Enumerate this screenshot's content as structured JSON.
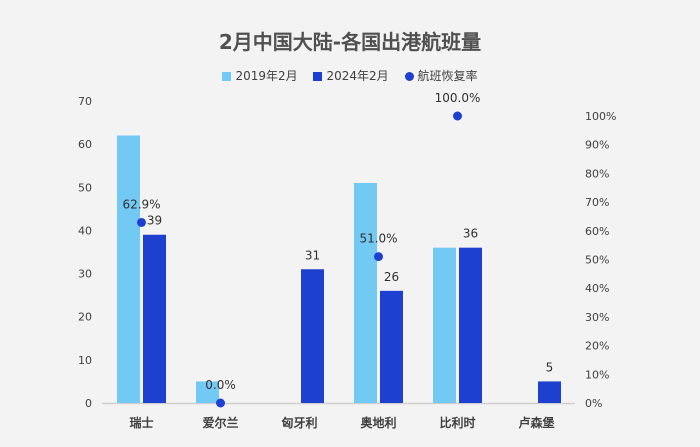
{
  "chart_data": {
    "type": "bar",
    "title": "2月中国大陆-各国出港航班量",
    "categories": [
      "瑞士",
      "爱尔兰",
      "匈牙利",
      "奥地利",
      "比利时",
      "卢森堡"
    ],
    "series": [
      {
        "name": "2019年2月",
        "type": "bar",
        "axis": "left",
        "color": "#72c9f4",
        "values": [
          62,
          5,
          0,
          51,
          36,
          0
        ],
        "labels": [
          null,
          null,
          null,
          null,
          null,
          null
        ]
      },
      {
        "name": "2024年2月",
        "type": "bar",
        "axis": "left",
        "color": "#1e40d0",
        "values": [
          39,
          0,
          31,
          26,
          36,
          5
        ],
        "labels": [
          "39",
          null,
          "31",
          "26",
          "36",
          "5"
        ]
      },
      {
        "name": "航班恢复率",
        "type": "scatter",
        "axis": "right",
        "color": "#1e40d0",
        "values": [
          62.9,
          0.0,
          null,
          51.0,
          100.0,
          null
        ],
        "labels": [
          "62.9%",
          "0.0%",
          null,
          "51.0%",
          "100.0%",
          null
        ]
      }
    ],
    "y_left": {
      "range": [
        0,
        70
      ],
      "ticks": [
        "0",
        "10",
        "20",
        "30",
        "40",
        "50",
        "60",
        "70"
      ]
    },
    "y_right": {
      "range": [
        0,
        100
      ],
      "ticks": [
        "0%",
        "10%",
        "20%",
        "30%",
        "40%",
        "50%",
        "60%",
        "70%",
        "80%",
        "90%",
        "100%"
      ]
    },
    "legend_position": "top",
    "grid": false
  }
}
